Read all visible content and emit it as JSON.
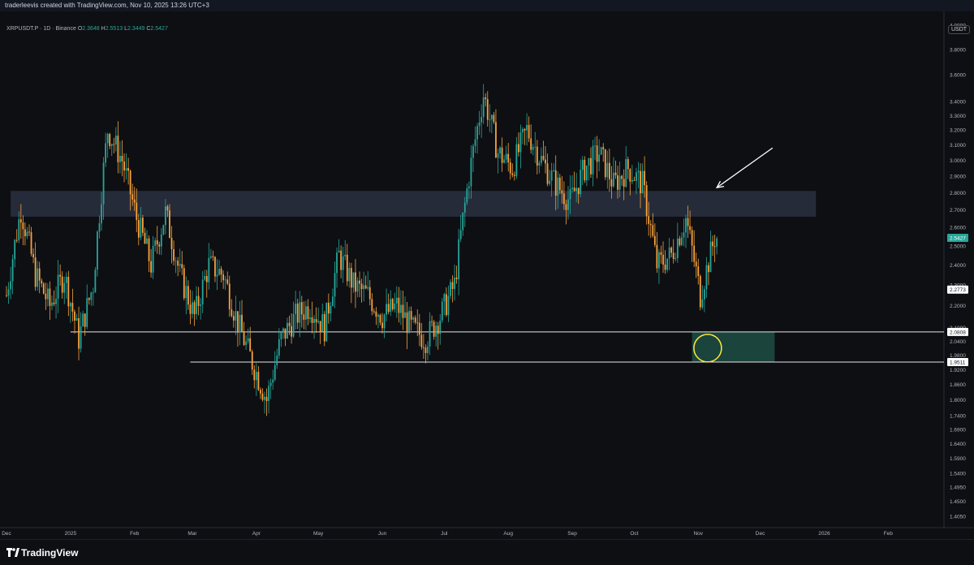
{
  "header": {
    "attribution": "traderleevis created with TradingView.com, Nov 10, 2025 13:26 UTC+3"
  },
  "legend": {
    "symbol": "XRPUSDT.P · 1D · Binance",
    "o_label": "O",
    "o_value": "2.3648",
    "h_label": "H",
    "h_value": "2.5513",
    "l_label": "L",
    "l_value": "2.3449",
    "c_label": "C",
    "c_value": "2.5427"
  },
  "currency": "USDT",
  "footer": {
    "brand": "TradingView"
  },
  "colors": {
    "background": "#0e0f13",
    "up": "#26a69a",
    "down": "#f7a23c",
    "resistance_zone": "#2a3042",
    "support_zone": "#1d4a43",
    "level_line": "#e6e6e6",
    "circle": "#ffeb3b",
    "arrow": "#ffffff"
  },
  "chart_data": {
    "type": "candlestick",
    "title": "",
    "y_scale": "log",
    "ylim": [
      1.39,
      4.05
    ],
    "y_ticks": [
      "4.0000",
      "3.8000",
      "3.6000",
      "3.4000",
      "3.3000",
      "3.2000",
      "3.1000",
      "3.0000",
      "2.9000",
      "2.8000",
      "2.7000",
      "2.6000",
      "2.5000",
      "2.4000",
      "2.3000",
      "2.2000",
      "2.1000",
      "2.0400",
      "1.9800",
      "1.9200",
      "1.8600",
      "1.8000",
      "1.7400",
      "1.6900",
      "1.6400",
      "1.5900",
      "1.5400",
      "1.4950",
      "1.4500",
      "1.4050"
    ],
    "x_ticks": [
      "Dec",
      "2025",
      "Feb",
      "Mar",
      "Apr",
      "May",
      "Jun",
      "Jul",
      "Aug",
      "Sep",
      "Oct",
      "Nov",
      "Dec",
      "2026",
      "Feb"
    ],
    "x_range": [
      "2024-12-01",
      "2026-02-28"
    ],
    "price_labels": [
      {
        "value": 2.5427,
        "text": "2.5427",
        "kind": "last"
      },
      {
        "value": 2.2773,
        "text": "2.2773",
        "kind": "level"
      },
      {
        "value": 2.0808,
        "text": "2.0808",
        "kind": "level"
      },
      {
        "value": 1.9511,
        "text": "1.9511",
        "kind": "level"
      }
    ],
    "horizontal_lines": [
      {
        "value": 2.0808,
        "from": "2025-01-01",
        "to": "2026-02-28"
      },
      {
        "value": 1.9511,
        "from": "2025-02-28",
        "to": "2026-02-28"
      }
    ],
    "zones": [
      {
        "name": "resistance",
        "low": 2.66,
        "high": 2.81,
        "from": "2024-12-03",
        "to": "2025-12-28"
      },
      {
        "name": "support",
        "low": 1.9511,
        "high": 2.0808,
        "from": "2025-10-29",
        "to": "2025-12-08"
      }
    ],
    "annotations": [
      {
        "type": "circle",
        "date": "2025-11-04",
        "price": 2.01
      },
      {
        "type": "arrow",
        "from_date": "2025-12-07",
        "from_price": 3.08,
        "to_date": "2025-11-10",
        "to_price": 2.83
      }
    ],
    "closes_weekly": [
      [
        "2024-12-01",
        2.25
      ],
      [
        "2024-12-08",
        2.7
      ],
      [
        "2024-12-15",
        2.35
      ],
      [
        "2024-12-22",
        2.2
      ],
      [
        "2024-12-29",
        2.35
      ],
      [
        "2025-01-05",
        2.05
      ],
      [
        "2025-01-12",
        2.3
      ],
      [
        "2025-01-19",
        3.2
      ],
      [
        "2025-01-26",
        3.0
      ],
      [
        "2025-02-02",
        2.65
      ],
      [
        "2025-02-09",
        2.4
      ],
      [
        "2025-02-16",
        2.68
      ],
      [
        "2025-02-23",
        2.35
      ],
      [
        "2025-03-02",
        2.15
      ],
      [
        "2025-03-09",
        2.4
      ],
      [
        "2025-03-16",
        2.35
      ],
      [
        "2025-03-23",
        2.12
      ],
      [
        "2025-03-30",
        1.95
      ],
      [
        "2025-04-06",
        1.8
      ],
      [
        "2025-04-13",
        2.05
      ],
      [
        "2025-04-20",
        2.15
      ],
      [
        "2025-04-27",
        2.2
      ],
      [
        "2025-05-04",
        2.1
      ],
      [
        "2025-05-11",
        2.45
      ],
      [
        "2025-05-18",
        2.3
      ],
      [
        "2025-05-25",
        2.25
      ],
      [
        "2025-06-01",
        2.15
      ],
      [
        "2025-06-08",
        2.2
      ],
      [
        "2025-06-15",
        2.1
      ],
      [
        "2025-06-22",
        2.05
      ],
      [
        "2025-06-29",
        2.15
      ],
      [
        "2025-07-06",
        2.3
      ],
      [
        "2025-07-13",
        2.9
      ],
      [
        "2025-07-20",
        3.45
      ],
      [
        "2025-07-27",
        3.05
      ],
      [
        "2025-08-03",
        2.95
      ],
      [
        "2025-08-10",
        3.2
      ],
      [
        "2025-08-17",
        3.0
      ],
      [
        "2025-08-24",
        2.85
      ],
      [
        "2025-08-31",
        2.75
      ],
      [
        "2025-09-07",
        2.95
      ],
      [
        "2025-09-14",
        3.05
      ],
      [
        "2025-09-21",
        2.85
      ],
      [
        "2025-09-28",
        2.95
      ],
      [
        "2025-10-05",
        2.85
      ],
      [
        "2025-10-12",
        2.4
      ],
      [
        "2025-10-19",
        2.45
      ],
      [
        "2025-10-26",
        2.65
      ],
      [
        "2025-11-02",
        2.25
      ],
      [
        "2025-11-09",
        2.5427
      ]
    ]
  }
}
